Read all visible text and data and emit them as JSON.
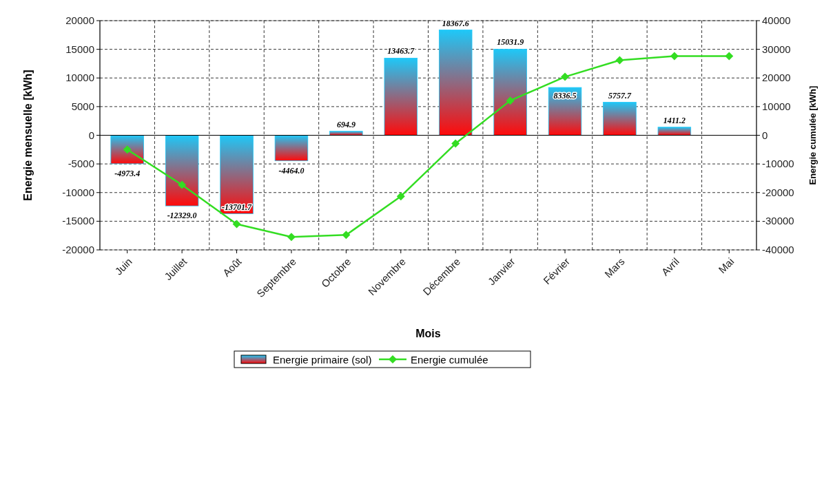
{
  "chart_data": {
    "type": "bar",
    "xlabel": "Mois",
    "ylabel": "Energie mensuelle [kWh]",
    "y2label": "Energie cumulée [kWh]",
    "categories": [
      "Juin",
      "Juillet",
      "Août",
      "Septembre",
      "Octobre",
      "Novembre",
      "Décembre",
      "Janvier",
      "Février",
      "Mars",
      "Avril",
      "Mai"
    ],
    "series": [
      {
        "name": "Energie primaire (sol)",
        "color": "#1ec8f8",
        "values": [
          -4973.4,
          -12329.0,
          -13701.7,
          -4464.0,
          694.9,
          13463.7,
          18367.6,
          15031.9,
          8336.5,
          5757.7,
          1411.2,
          0
        ],
        "value_labels": [
          "-4973.4",
          "-12329.0",
          "-13701.7",
          "-4464.0",
          "694.9",
          "13463.7",
          "18367.6",
          "15031.9",
          "8336.5",
          "5757.7",
          "1411.2",
          null
        ]
      },
      {
        "name": "Energie cumulée",
        "type": "line",
        "axis": "y2",
        "color": "#33dd22",
        "marker": "diamond",
        "values": [
          -5000,
          -17300,
          -31000,
          -35500,
          -34800,
          -21300,
          -2900,
          12100,
          20400,
          26200,
          27600,
          27600
        ]
      }
    ],
    "ylim": [
      -20000,
      20000
    ],
    "yticks": [
      -20000,
      -15000,
      -10000,
      -5000,
      0,
      5000,
      10000,
      15000,
      20000
    ],
    "y2lim": [
      -40000,
      40000
    ],
    "y2ticks": [
      -40000,
      -30000,
      -20000,
      -10000,
      0,
      10000,
      20000,
      30000,
      40000
    ],
    "grid": true,
    "legend": "bottom"
  }
}
